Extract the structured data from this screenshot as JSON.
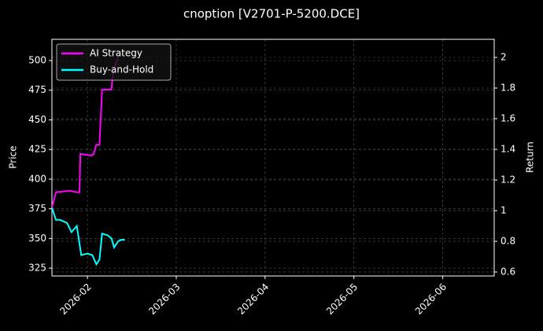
{
  "chart_data": {
    "type": "line",
    "title": "cnoption [V2701-P-5200.DCE]",
    "ylabel": "Price",
    "y2label": "Return",
    "xlim": [
      1.6,
      6.58
    ],
    "xticks": [
      {
        "value": 2,
        "label": "2026-02"
      },
      {
        "value": 3,
        "label": "2026-03"
      },
      {
        "value": 4,
        "label": "2026-04"
      },
      {
        "value": 5,
        "label": "2026-05"
      },
      {
        "value": 6,
        "label": "2026-06"
      }
    ],
    "ylim": [
      318.4,
      517.9
    ],
    "yticks": [
      325,
      350,
      375,
      400,
      425,
      450,
      475,
      500
    ],
    "y2lim": [
      0.574,
      2.118
    ],
    "y2ticks": [
      0.6,
      0.8,
      1.0,
      1.2,
      1.4,
      1.6,
      1.8,
      2.0
    ],
    "grid": true,
    "legend": "upper left",
    "series": [
      {
        "name": "AI Strategy",
        "color": "#ff00ff",
        "axis": "y2",
        "x": [
          1.6,
          1.645,
          1.8,
          1.88,
          1.91,
          1.92,
          2.045,
          2.07,
          2.1,
          2.135,
          2.165,
          2.27,
          2.29,
          2.345
        ],
        "values": [
          1.02,
          1.12,
          1.13,
          1.12,
          1.12,
          1.37,
          1.36,
          1.37,
          1.43,
          1.43,
          1.79,
          1.79,
          1.91,
          2.0
        ]
      },
      {
        "name": "Buy-and-Hold",
        "color": "#00ffff",
        "axis": "y2",
        "x": [
          1.6,
          1.645,
          1.69,
          1.77,
          1.82,
          1.88,
          1.93,
          2.0,
          2.055,
          2.1,
          2.135,
          2.165,
          2.225,
          2.27,
          2.3,
          2.345,
          2.38,
          2.42
        ],
        "values": [
          1.02,
          0.94,
          0.94,
          0.92,
          0.86,
          0.9,
          0.71,
          0.72,
          0.71,
          0.65,
          0.68,
          0.85,
          0.84,
          0.82,
          0.76,
          0.8,
          0.81,
          0.81
        ]
      }
    ]
  }
}
